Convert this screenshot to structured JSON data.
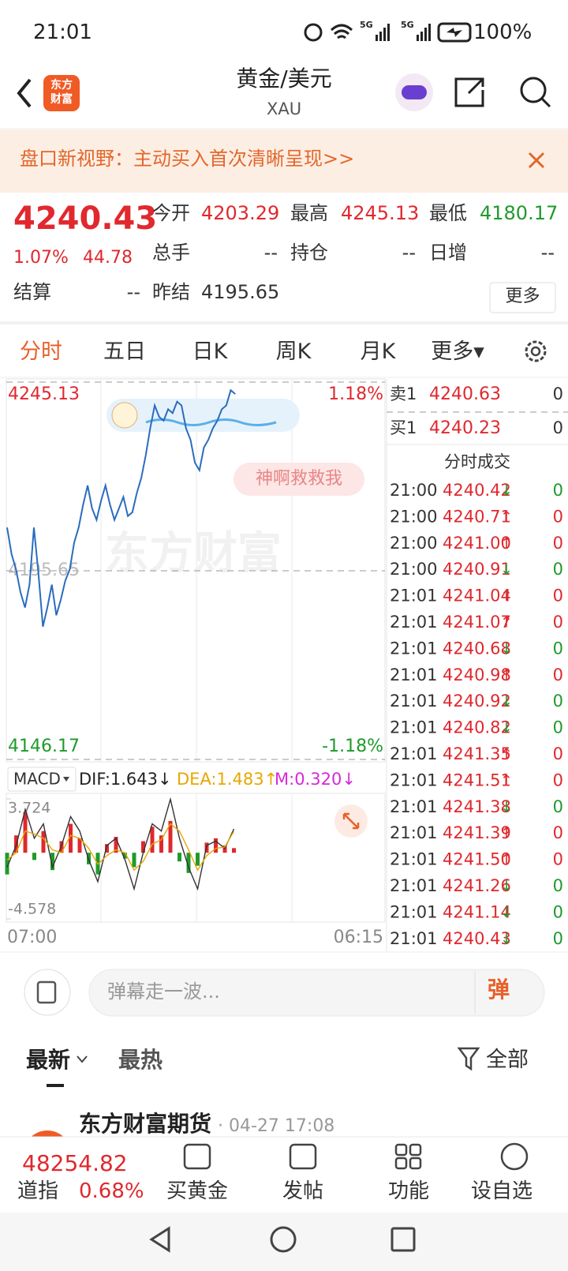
{
  "status_bar": {
    "time": "21:01",
    "network": [
      "5G",
      "5G"
    ],
    "battery": "100%"
  },
  "header": {
    "logo": [
      "东方",
      "财富"
    ],
    "title": "黄金/美元",
    "subtitle": "XAU"
  },
  "banner": {
    "text": "盘口新视野：主动买入首次清晰呈现>>"
  },
  "quote": {
    "price": "4240.43",
    "change_pct": "1.07%",
    "change": "44.78",
    "fields": [
      {
        "label": "今开",
        "value": "4203.29",
        "color": "#e0282e"
      },
      {
        "label": "最高",
        "value": "4245.13",
        "color": "#e0282e"
      },
      {
        "label": "最低",
        "value": "4180.17",
        "color": "#1f9a2c"
      },
      {
        "label": "总手",
        "value": "--",
        "color": "#333333"
      },
      {
        "label": "持仓",
        "value": "--",
        "color": "#333333"
      },
      {
        "label": "日增",
        "value": "--",
        "color": "#333333"
      },
      {
        "label": "结算",
        "value": "--",
        "color": "#333333"
      },
      {
        "label": "昨结",
        "value": "4195.65",
        "color": "#333333"
      }
    ],
    "more": "更多"
  },
  "tabs": {
    "items": [
      "分时",
      "五日",
      "日K",
      "周K",
      "月K",
      "更多▾"
    ],
    "active": 0
  },
  "chart_data": [
    {
      "type": "line",
      "watermark": "东方财富",
      "annotation": "神啊救救我",
      "color": "#2b6cbf",
      "up_color": "#e0282e",
      "down_color": "#1f9a2c",
      "ylim": [
        4146.17,
        4245.13
      ],
      "yticks": [
        4146.17,
        4195.65,
        4245.13
      ],
      "y2lim": [
        -1.18,
        1.18
      ],
      "y2ticks": [
        {
          "value": -1.18,
          "label": "-1.18%"
        },
        {
          "value": 1.18,
          "label": "1.18%"
        }
      ],
      "values": [
        4207,
        4200,
        4196,
        4190,
        4186,
        4192,
        4207,
        4195,
        4181,
        4186,
        4192,
        4184,
        4188,
        4193,
        4196,
        4203,
        4207,
        4213,
        4218,
        4212,
        4209,
        4214,
        4218,
        4213,
        4209,
        4212,
        4215,
        4210,
        4211,
        4216,
        4220,
        4226,
        4233,
        4239,
        4236,
        4235,
        4238,
        4237,
        4240,
        4239,
        4233,
        4230,
        4224,
        4222,
        4228,
        4230,
        4233,
        4235,
        4238,
        4239,
        4243,
        4242
      ]
    },
    {
      "type": "macd",
      "legend_button": "MACD",
      "legend": [
        {
          "text": "DIF:1.643↓",
          "color": "#222222"
        },
        {
          "text": "DEA:1.483↑",
          "color": "#e6a700"
        },
        {
          "text": "M:0.320↓",
          "color": "#d62ad6"
        }
      ],
      "ylim": [
        -4.578,
        3.724
      ],
      "yticks": [
        -4.578,
        3.724
      ],
      "up_color": "#e0282e",
      "down_color": "#1f9a2c",
      "dif_color": "#333333",
      "dea_color": "#e6a700",
      "histogram": [
        -1.5,
        1.2,
        2.8,
        -0.5,
        1.5,
        -1.2,
        0.8,
        2.0,
        1.0,
        -0.8,
        -1.5,
        0.6,
        1.1,
        -0.4,
        -1.0,
        0.8,
        1.8,
        1.2,
        2.2,
        -0.6,
        -1.4,
        -0.9,
        0.7,
        1.0,
        0.5,
        0.32
      ],
      "dif": [
        -1.0,
        0.5,
        3.0,
        1.0,
        2.0,
        -1.0,
        0.5,
        2.5,
        1.5,
        -0.5,
        -2.0,
        0.5,
        1.0,
        -0.5,
        -2.5,
        0.0,
        2.0,
        1.5,
        3.7,
        1.0,
        -1.0,
        -2.5,
        0.5,
        0.8,
        0.3,
        1.643
      ],
      "dea": [
        -0.5,
        0.0,
        1.5,
        1.3,
        1.0,
        0.2,
        0.0,
        1.2,
        1.0,
        0.3,
        -0.8,
        -0.2,
        0.2,
        0.0,
        -1.2,
        -0.6,
        0.6,
        0.9,
        2.0,
        1.5,
        0.2,
        -1.2,
        -0.2,
        0.3,
        0.4,
        1.483
      ],
      "x_labels": [
        "07:00",
        "06:15"
      ]
    }
  ],
  "order_book": [
    {
      "side": "卖1",
      "price": "4240.63",
      "vol": "0"
    },
    {
      "side": "买1",
      "price": "4240.23",
      "vol": "0"
    }
  ],
  "trades": {
    "title": "分时成交",
    "rows": [
      {
        "time": "21:00",
        "price": "4240.42",
        "dir": "↓",
        "vol": "0"
      },
      {
        "time": "21:00",
        "price": "4240.71",
        "dir": "↑",
        "vol": "0"
      },
      {
        "time": "21:00",
        "price": "4241.00",
        "dir": "↑",
        "vol": "0"
      },
      {
        "time": "21:00",
        "price": "4240.91",
        "dir": "↓",
        "vol": "0"
      },
      {
        "time": "21:01",
        "price": "4241.04",
        "dir": "↑",
        "vol": "0"
      },
      {
        "time": "21:01",
        "price": "4241.07",
        "dir": "↑",
        "vol": "0"
      },
      {
        "time": "21:01",
        "price": "4240.68",
        "dir": "↓",
        "vol": "0"
      },
      {
        "time": "21:01",
        "price": "4240.98",
        "dir": "↑",
        "vol": "0"
      },
      {
        "time": "21:01",
        "price": "4240.92",
        "dir": "↓",
        "vol": "0"
      },
      {
        "time": "21:01",
        "price": "4240.82",
        "dir": "↓",
        "vol": "0"
      },
      {
        "time": "21:01",
        "price": "4241.35",
        "dir": "↑",
        "vol": "0"
      },
      {
        "time": "21:01",
        "price": "4241.51",
        "dir": "↑",
        "vol": "0"
      },
      {
        "time": "21:01",
        "price": "4241.38",
        "dir": "↓",
        "vol": "0"
      },
      {
        "time": "21:01",
        "price": "4241.39",
        "dir": "↑",
        "vol": "0"
      },
      {
        "time": "21:01",
        "price": "4241.50",
        "dir": "↑",
        "vol": "0"
      },
      {
        "time": "21:01",
        "price": "4241.26",
        "dir": "↓",
        "vol": "0"
      },
      {
        "time": "21:01",
        "price": "4241.14",
        "dir": "↓",
        "vol": "0"
      },
      {
        "time": "21:01",
        "price": "4240.43",
        "dir": "↓",
        "vol": "0"
      }
    ]
  },
  "comment": {
    "placeholder": "弹幕走一波...",
    "button": "弹"
  },
  "feed": {
    "tabs": [
      "最新",
      "最热"
    ],
    "filter": "全部",
    "post": {
      "author": "东方财富期货",
      "time": "· 04-27 17:08"
    }
  },
  "bottom_bar": {
    "index_value": "48254.82",
    "index_name": "道指",
    "index_change": "0.68%",
    "buttons": [
      "买黄金",
      "发帖",
      "功能",
      "设自选"
    ]
  }
}
